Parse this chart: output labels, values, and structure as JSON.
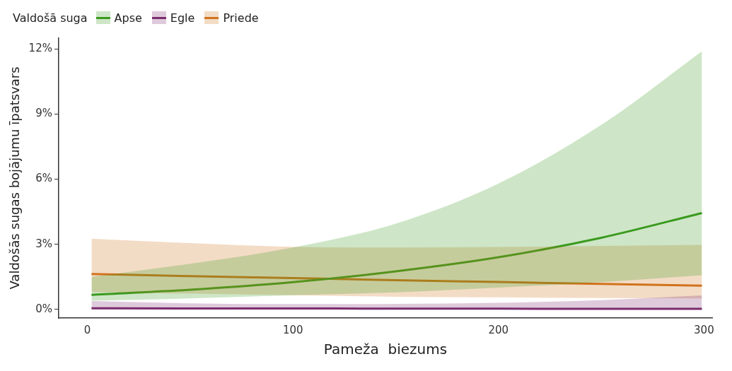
{
  "chart_data": {
    "type": "line",
    "xlabel": "Pameža  biezums",
    "ylabel": "Valdošās sugas bojājumu īpatsvars",
    "legend_title": "Valdošā suga",
    "legend": "top left",
    "grid": false,
    "x": [
      2,
      50,
      100,
      150,
      200,
      250,
      299
    ],
    "xlim": [
      -14,
      304
    ],
    "xticks": [
      0,
      100,
      200,
      300
    ],
    "ylim": [
      -0.4,
      12.5
    ],
    "yticks": [
      {
        "value": 0,
        "label": "0%"
      },
      {
        "value": 3,
        "label": "3%"
      },
      {
        "value": 6,
        "label": "6%"
      },
      {
        "value": 9,
        "label": "9%"
      },
      {
        "value": 12,
        "label": "12%"
      }
    ],
    "series": [
      {
        "name": "Apse",
        "color": "#3a9a1e",
        "values": [
          0.67,
          0.9,
          1.25,
          1.75,
          2.4,
          3.3,
          4.44
        ],
        "lower": [
          0.4,
          0.5,
          0.65,
          0.78,
          1.0,
          1.25,
          1.57
        ],
        "upper": [
          1.5,
          2.1,
          2.85,
          3.95,
          5.8,
          8.5,
          11.9
        ]
      },
      {
        "name": "Egle",
        "color": "#7b2d6e",
        "values": [
          0.05,
          0.04,
          0.04,
          0.03,
          0.03,
          0.02,
          0.02
        ],
        "lower": [
          0,
          0,
          0,
          0,
          0,
          0,
          0
        ],
        "upper": [
          0.38,
          0.28,
          0.24,
          0.25,
          0.3,
          0.42,
          0.64
        ]
      },
      {
        "name": "Priede",
        "color": "#d0731c",
        "values": [
          1.63,
          1.53,
          1.44,
          1.34,
          1.26,
          1.17,
          1.09
        ],
        "lower": [
          0.8,
          0.72,
          0.65,
          0.58,
          0.55,
          0.52,
          0.5
        ],
        "upper": [
          3.26,
          3.05,
          2.88,
          2.85,
          2.87,
          2.92,
          2.97
        ]
      }
    ]
  }
}
